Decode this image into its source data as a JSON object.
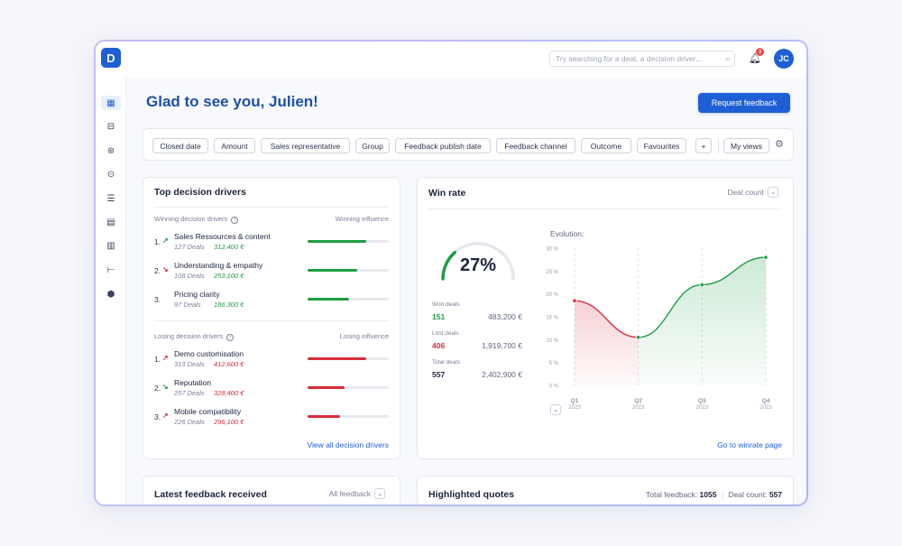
{
  "app": {
    "logo": "D",
    "search_placeholder": "Try searching for a deal, a decision driver...",
    "notification_count": "3",
    "avatar_initials": "JC"
  },
  "sidebar": {
    "items": [
      {
        "icon": "dashboard-icon",
        "glyph": "▦"
      },
      {
        "icon": "inbox-icon",
        "glyph": "⊟"
      },
      {
        "icon": "network-icon",
        "glyph": "⊛"
      },
      {
        "icon": "target-icon",
        "glyph": "⊙"
      },
      {
        "icon": "checklist-icon",
        "glyph": "☰"
      },
      {
        "icon": "document-icon",
        "glyph": "▤"
      },
      {
        "icon": "report-icon",
        "glyph": "▥"
      },
      {
        "icon": "hierarchy-icon",
        "glyph": "⊢"
      },
      {
        "icon": "cube-icon",
        "glyph": "⬢"
      }
    ]
  },
  "header": {
    "greeting": "Glad to see you, Julien!",
    "request_feedback_label": "Request feedback"
  },
  "filters": {
    "chips": [
      "Closed date",
      "Amount",
      "Sales representative",
      "Group",
      "Feedback publish date",
      "Feedback channel",
      "Outcome",
      "Favourites"
    ],
    "add_label": "+",
    "my_views_label": "My views"
  },
  "drivers": {
    "title": "Top decision drivers",
    "winning_label": "Winning decision drivers",
    "winning_influence_label": "Winning influence",
    "losing_label": "Losing decision drivers",
    "losing_influence_label": "Losing influence",
    "winning": [
      {
        "rank": "1.",
        "trend": "up",
        "name": "Sales Ressources & content",
        "deals": "127 Deals",
        "amount": "312,400 €",
        "influence": 0.72
      },
      {
        "rank": "2.",
        "trend": "down",
        "name": "Understanding & empathy",
        "deals": "108 Deals",
        "amount": "253,100 €",
        "influence": 0.61
      },
      {
        "rank": "3.",
        "trend": "",
        "name": "Pricing clarity",
        "deals": "97 Deals",
        "amount": "186,300 €",
        "influence": 0.51
      }
    ],
    "losing": [
      {
        "rank": "1.",
        "trend": "up",
        "name": "Demo customisation",
        "deals": "313 Deals",
        "amount": "412,600 €",
        "influence": 0.72
      },
      {
        "rank": "2.",
        "trend": "down",
        "name": "Reputation",
        "deals": "257 Deals",
        "amount": "328,400 €",
        "influence": 0.46
      },
      {
        "rank": "3.",
        "trend": "up",
        "name": "Mobile compatibility",
        "deals": "226 Deals",
        "amount": "296,100 €",
        "influence": 0.4
      }
    ],
    "view_all_label": "View all decision drivers"
  },
  "winrate": {
    "title": "Win rate",
    "dropdown_label": "Deal count",
    "gauge_value": "27%",
    "gauge_fraction": 0.27,
    "won_label": "Won deals",
    "won_count": "151",
    "won_amount": "483,200 €",
    "lost_label": "Lost deals",
    "lost_count": "406",
    "lost_amount": "1,919,700 €",
    "total_label": "Total deals",
    "total_count": "557",
    "total_amount": "2,402,900 €",
    "evolution_label": "Evolution:",
    "link_label": "Go to winrate page",
    "colors": {
      "green": "#1e9e43",
      "red": "#d82d3a"
    }
  },
  "chart_data": {
    "type": "line",
    "title": "Evolution:",
    "x": [
      "Q1 2023",
      "Q2 2023",
      "Q3 2023",
      "Q4 2023"
    ],
    "x_ticks": [
      [
        "Q1",
        "2023"
      ],
      [
        "Q2",
        "2023"
      ],
      [
        "Q3",
        "2023"
      ],
      [
        "Q4",
        "2023"
      ]
    ],
    "series": [
      {
        "values": [
          18.5,
          10.5,
          22,
          28
        ]
      }
    ],
    "y_ticks": [
      "0 %",
      "5 %",
      "10 %",
      "15 %",
      "20 %",
      "25 %",
      "30 %"
    ],
    "ylim": [
      0,
      30
    ],
    "grid": false,
    "colors": {
      "decline": "#d82d3a",
      "rise": "#1e9e43"
    }
  },
  "feedback": {
    "title": "Latest feedback received",
    "dropdown_label": "All feedback"
  },
  "quotes": {
    "title": "Highlighted quotes",
    "total_feedback_label": "Total feedback:",
    "total_feedback_value": "1055",
    "deal_count_label": "Deal count:",
    "deal_count_value": "557"
  }
}
